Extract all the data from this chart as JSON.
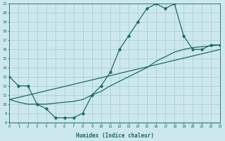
{
  "xlabel": "Humidex (Indice chaleur)",
  "bg_color": "#cde8ec",
  "grid_color": "#a8d0d8",
  "line_color": "#1a6b62",
  "xmin": 0,
  "xmax": 23,
  "ymin": 8,
  "ymax": 21,
  "bell_x": [
    0,
    1,
    2,
    3,
    4,
    5,
    6,
    7,
    8,
    9,
    10,
    11,
    12,
    13,
    14,
    15,
    16,
    17,
    18,
    19,
    20,
    21,
    22,
    23
  ],
  "bell_y": [
    13,
    12,
    12,
    10,
    9.5,
    8.5,
    8.5,
    8.5,
    9.0,
    11,
    12,
    13.5,
    16,
    17.5,
    19.0,
    20.5,
    21.0,
    20.5,
    21.0,
    17.5,
    16.0,
    16.0,
    16.5,
    16.5
  ],
  "line2_x": [
    0,
    1,
    2,
    3,
    4,
    5,
    6,
    7,
    8,
    9,
    10,
    11,
    12,
    13,
    14,
    15,
    16,
    17,
    18,
    19,
    20,
    21,
    22,
    23
  ],
  "line2_y": [
    10.5,
    10.2,
    10.0,
    10.0,
    10.0,
    10.1,
    10.2,
    10.3,
    10.5,
    11.0,
    11.4,
    12.0,
    12.5,
    13.0,
    13.5,
    14.0,
    14.7,
    15.2,
    15.7,
    16.0,
    16.2,
    16.3,
    16.4,
    16.5
  ],
  "line3_x": [
    0,
    23
  ],
  "line3_y": [
    10.5,
    16.0
  ]
}
